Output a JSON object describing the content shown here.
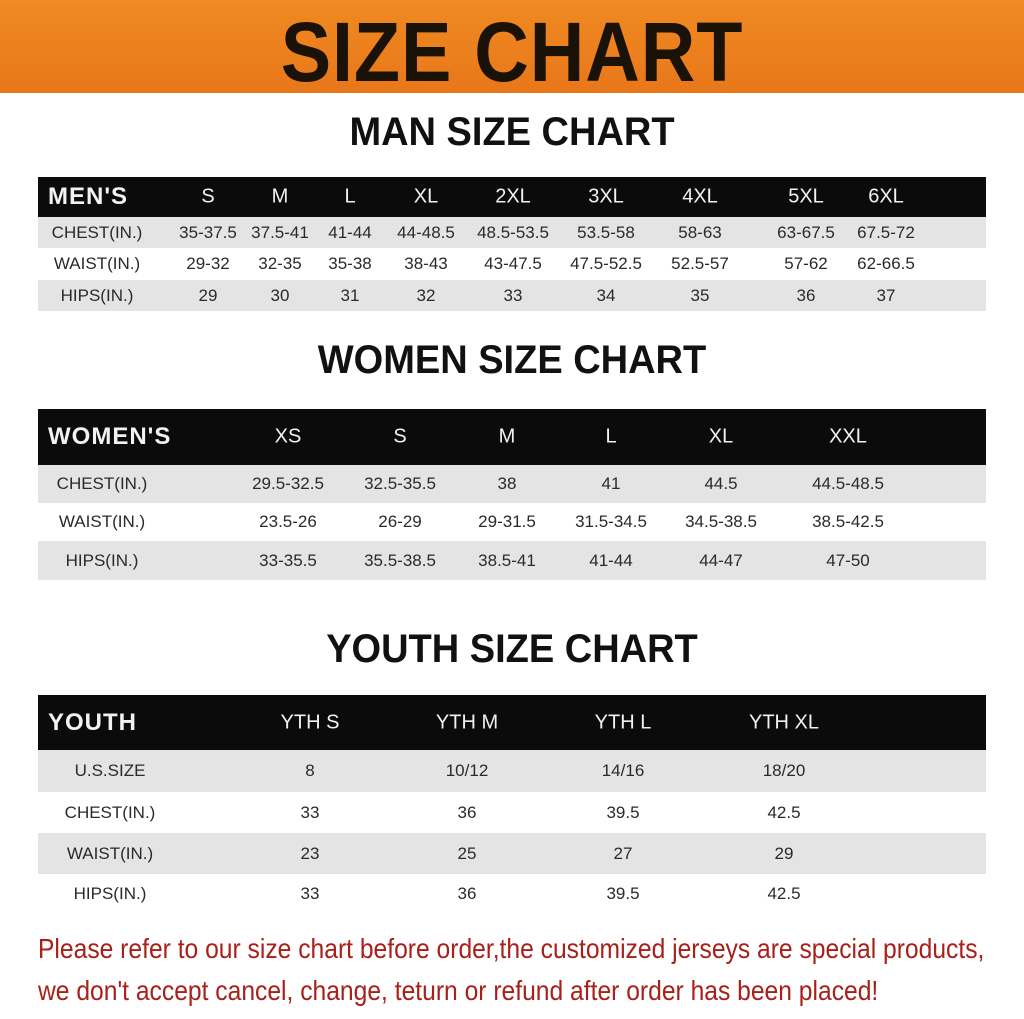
{
  "banner_title": "SIZE CHART",
  "men": {
    "title": "MAN SIZE CHART",
    "header": [
      "MEN'S",
      "S",
      "M",
      "L",
      "XL",
      "2XL",
      "3XL",
      "4XL",
      "5XL",
      "6XL"
    ],
    "rows": [
      [
        "CHEST(IN.)",
        "35-37.5",
        "37.5-41",
        "41-44",
        "44-48.5",
        "48.5-53.5",
        "53.5-58",
        "58-63",
        "63-67.5",
        "67.5-72"
      ],
      [
        "WAIST(IN.)",
        "29-32",
        "32-35",
        "35-38",
        "38-43",
        "43-47.5",
        "47.5-52.5",
        "52.5-57",
        "57-62",
        "62-66.5"
      ],
      [
        "HIPS(IN.)",
        "29",
        "30",
        "31",
        "32",
        "33",
        "34",
        "35",
        "36",
        "37"
      ]
    ]
  },
  "women": {
    "title": "WOMEN SIZE CHART",
    "header": [
      "WOMEN'S",
      "XS",
      "S",
      "M",
      "L",
      "XL",
      "XXL"
    ],
    "rows": [
      [
        "CHEST(IN.)",
        "29.5-32.5",
        "32.5-35.5",
        "38",
        "41",
        "44.5",
        "44.5-48.5"
      ],
      [
        "WAIST(IN.)",
        "23.5-26",
        "26-29",
        "29-31.5",
        "31.5-34.5",
        "34.5-38.5",
        "38.5-42.5"
      ],
      [
        "HIPS(IN.)",
        "33-35.5",
        "35.5-38.5",
        "38.5-41",
        "41-44",
        "44-47",
        "47-50"
      ]
    ]
  },
  "youth": {
    "title": "YOUTH SIZE CHART",
    "header": [
      "YOUTH",
      "YTH S",
      "YTH M",
      "YTH L",
      "YTH XL"
    ],
    "rows": [
      [
        "U.S.SIZE",
        "8",
        "10/12",
        "14/16",
        "18/20"
      ],
      [
        "CHEST(IN.)",
        "33",
        "36",
        "39.5",
        "42.5"
      ],
      [
        "WAIST(IN.)",
        "23",
        "25",
        "27",
        "29"
      ],
      [
        "HIPS(IN.)",
        "33",
        "36",
        "39.5",
        "42.5"
      ]
    ]
  },
  "notice": [
    "Please refer to our size chart before order,the customized jerseys are special products,",
    "we don't accept cancel, change, teturn or refund after order has been placed!"
  ],
  "colors": {
    "banner": "#ec8020",
    "header": "#0b0b0b",
    "stripe": "#e4e4e4",
    "notice": "#a8201a"
  }
}
